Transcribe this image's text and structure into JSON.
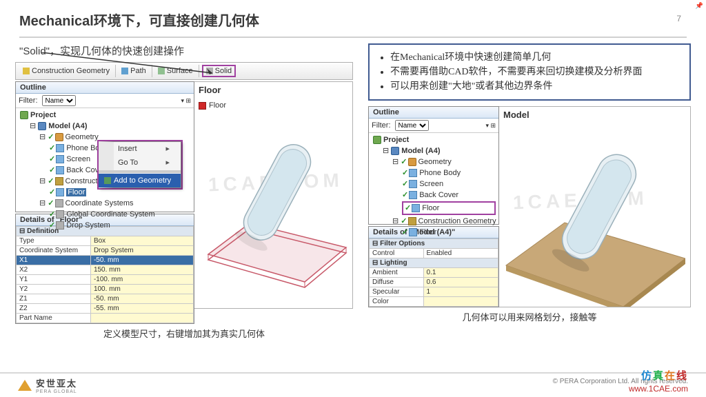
{
  "page": {
    "number": "7",
    "title": "Mechanical环境下，可直接创建几何体"
  },
  "solid_callout": {
    "label": "\"Solid\"，",
    "desc": "实现几何体的快速创建操作"
  },
  "toolbar": {
    "construction": "Construction Geometry",
    "path": "Path",
    "surface": "Surface",
    "solid": "Solid"
  },
  "left": {
    "outline_title": "Outline",
    "filter_label": "Filter:",
    "filter_value": "Name",
    "model_label": "Floor",
    "legend_item": "Floor",
    "tree": {
      "project": "Project",
      "model": "Model (A4)",
      "geometry": "Geometry",
      "bodies": [
        "Phone Body",
        "Screen",
        "Back Cover"
      ],
      "cg": "Construction Geome",
      "floor": "Floor",
      "coord": "Coordinate Systems",
      "gcs": "Global Coordinate System",
      "ds": "Drop System"
    },
    "ctx": {
      "insert": "Insert",
      "goto": "Go To",
      "add": "Add to Geometry"
    },
    "details_title": "Details of \"Floor\"",
    "def_header": "Definition",
    "rows": [
      {
        "k": "Type",
        "v": "Box"
      },
      {
        "k": "Coordinate System",
        "v": "Drop System"
      },
      {
        "k": "X1",
        "v": "-50. mm",
        "sel": true
      },
      {
        "k": "X2",
        "v": "150. mm"
      },
      {
        "k": "Y1",
        "v": "-100. mm"
      },
      {
        "k": "Y2",
        "v": "100. mm"
      },
      {
        "k": "Z1",
        "v": "-50. mm"
      },
      {
        "k": "Z2",
        "v": "-55. mm"
      },
      {
        "k": "Part Name",
        "v": ""
      }
    ],
    "caption": "定义模型尺寸，右键增加其为真实几何体"
  },
  "bullets": [
    "在Mechanical环境中快速创建简单几何",
    "不需要再借助CAD软件，不需要再来回切换建模及分析界面",
    "可以用来创建\"大地\"或者其他边界条件"
  ],
  "right": {
    "outline_title": "Outline",
    "filter_label": "Filter:",
    "filter_value": "Name",
    "model_label": "Model",
    "tree": {
      "project": "Project",
      "model": "Model (A4)",
      "geometry": "Geometry",
      "bodies": [
        "Phone Body",
        "Screen",
        "Back Cover",
        "Floor"
      ],
      "cg": "Construction Geometry",
      "floor": "Floor"
    },
    "details_title": "Details of \"Model (A4)\"",
    "filter_header": "Filter Options",
    "lighting_header": "Lighting",
    "rows_filter": [
      {
        "k": "Control",
        "v": "Enabled"
      }
    ],
    "rows_light": [
      {
        "k": "Ambient",
        "v": "0.1"
      },
      {
        "k": "Diffuse",
        "v": "0.6"
      },
      {
        "k": "Specular",
        "v": "1"
      },
      {
        "k": "Color",
        "v": ""
      }
    ],
    "caption": "几何体可以用来网格划分，接触等"
  },
  "footer": {
    "company_cn": "安世亚太",
    "company_en": "PERA GLOBAL",
    "copyright": "©   PERA Corporation Ltd. All rights reserved.",
    "cae_text": "仿真在线",
    "cae_url": "www.1CAE.com"
  },
  "colors": {
    "highlight_purple": "#a040a0",
    "menu_blue": "#2a5fae",
    "box_border": "#405a90",
    "floor_wire": "#c85a6a",
    "floor_solid": "#c8a070"
  }
}
